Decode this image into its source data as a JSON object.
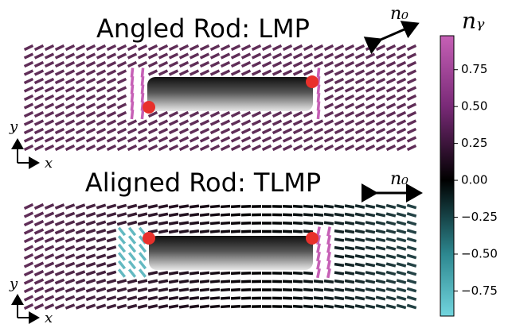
{
  "panels": [
    {
      "title": "Angled Rod: LMP",
      "director_label": "n₀",
      "axis_y": "y",
      "axis_x": "x"
    },
    {
      "title": "Aligned Rod: TLMP",
      "director_label": "n₀",
      "axis_y": "y",
      "axis_x": "x"
    }
  ],
  "colorbar": {
    "label": "nᵧ",
    "lim": [
      -0.92,
      0.98
    ],
    "ticks": [
      {
        "value": 0.75,
        "label": "0.75"
      },
      {
        "value": 0.5,
        "label": "0.50"
      },
      {
        "value": 0.25,
        "label": "0.25"
      },
      {
        "value": 0,
        "label": "0.00"
      },
      {
        "value": -0.25,
        "label": "−0.25"
      },
      {
        "value": -0.5,
        "label": "−0.50"
      },
      {
        "value": -0.75,
        "label": "−0.75"
      }
    ]
  }
}
